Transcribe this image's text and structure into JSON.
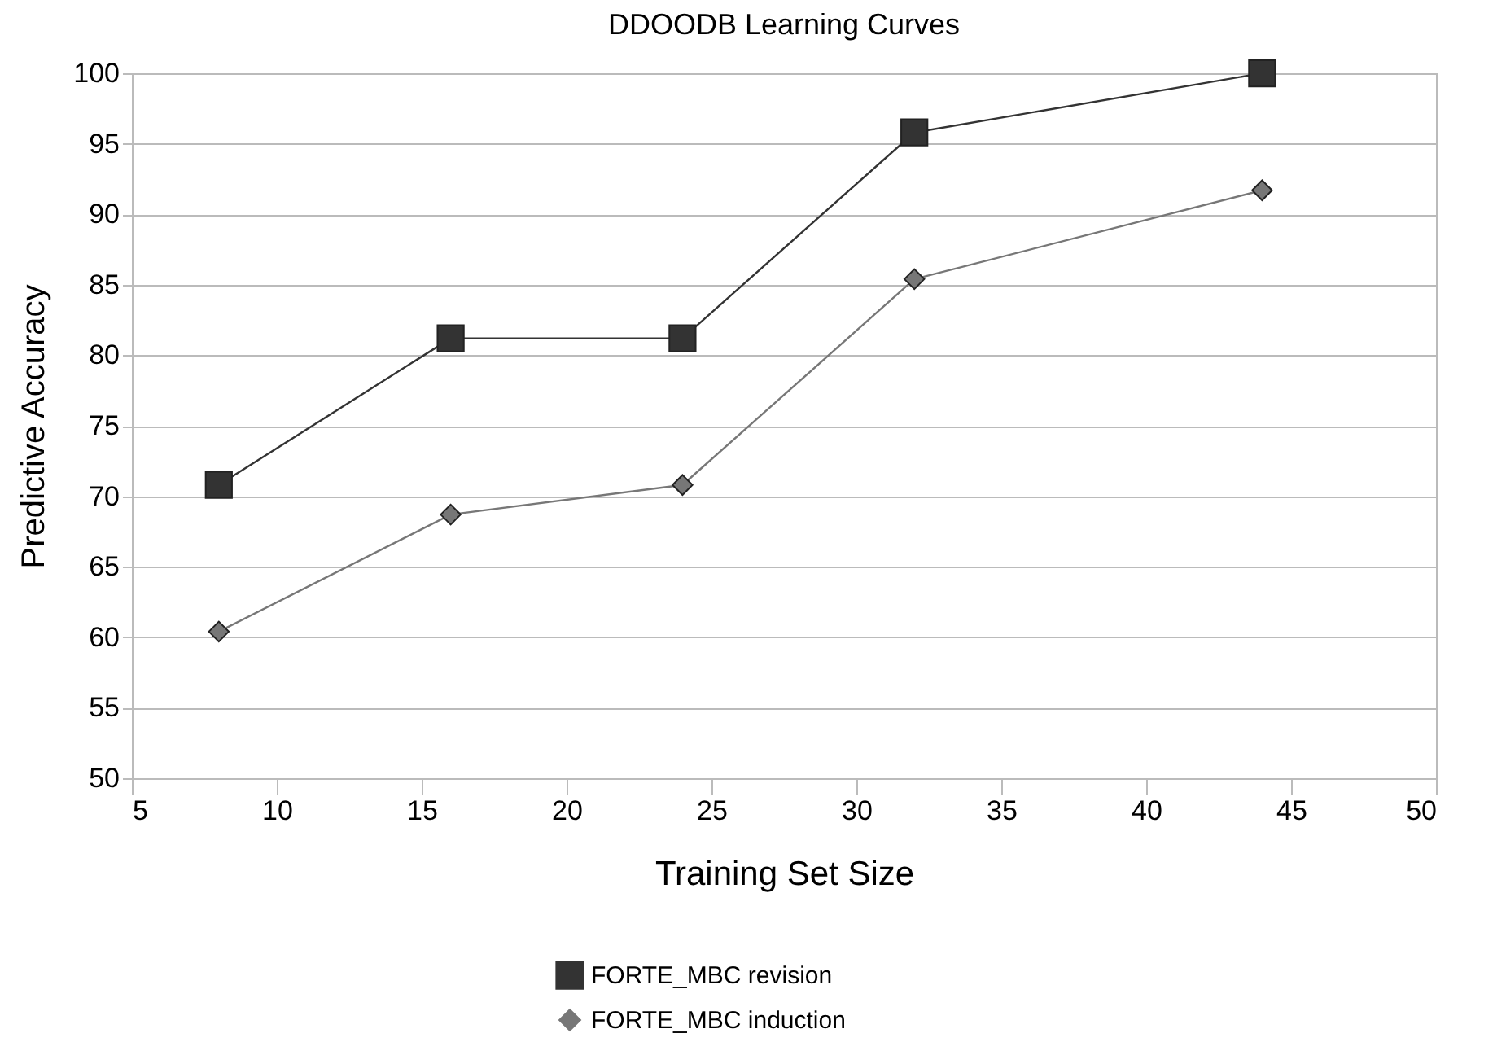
{
  "chart_data": {
    "type": "line",
    "title": "DDOODB Learning Curves",
    "xlabel": "Training Set Size",
    "ylabel": "Predictive Accuracy",
    "x": [
      8,
      16,
      24,
      32,
      44
    ],
    "series": [
      {
        "name": "FORTE_MBC revision",
        "color": "#333333",
        "marker": "square",
        "values": [
          70.8,
          81.2,
          81.2,
          95.8,
          100
        ]
      },
      {
        "name": "FORTE_MBC induction",
        "color": "#777777",
        "marker": "diamond",
        "values": [
          60.4,
          68.7,
          70.8,
          85.4,
          91.7
        ]
      }
    ],
    "xlim": [
      5,
      50
    ],
    "xticks": [
      5,
      10,
      15,
      20,
      25,
      30,
      35,
      40,
      45,
      50
    ],
    "ylim": [
      50,
      100
    ],
    "yticks": [
      50,
      55,
      60,
      65,
      70,
      75,
      80,
      85,
      90,
      95,
      100
    ],
    "grid": "y",
    "legend": "bottom",
    "line_style": "solid"
  }
}
